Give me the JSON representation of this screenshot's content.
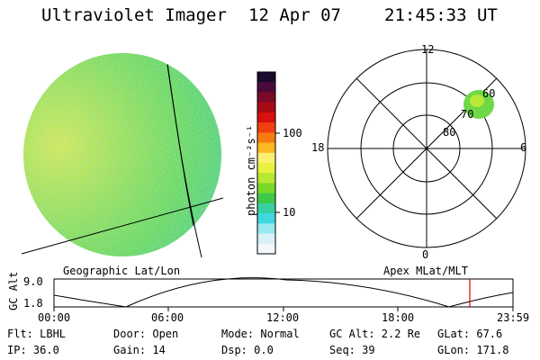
{
  "header": {
    "instrument": "Ultraviolet Imager",
    "date": "12 Apr 07",
    "time": "21:45:33 UT"
  },
  "colorbar": {
    "unit_label": "photon cm⁻²s⁻¹",
    "ticks": [
      "100",
      "10"
    ],
    "colors": [
      "#1a0a2e",
      "#4b0a3c",
      "#7a0a28",
      "#a80a14",
      "#d81010",
      "#f04010",
      "#f87a10",
      "#fcb820",
      "#fcf070",
      "#e8f040",
      "#b8e830",
      "#78d828",
      "#40c848",
      "#38d0a0",
      "#40d8e0",
      "#98e8f0",
      "#d8f0f8",
      "#f4f8fc"
    ]
  },
  "geo_panel": {
    "caption": "Geographic Lat/Lon"
  },
  "polar_panel": {
    "caption": "Apex MLat/MLT",
    "mlt_labels": {
      "top": "12",
      "bottom": "0",
      "left": "18",
      "right": "6"
    },
    "lat_labels": [
      "60",
      "70",
      "80"
    ]
  },
  "altitude_plot": {
    "ylabel": "GC Alt",
    "yticks": [
      "9.0",
      "1.8"
    ],
    "xticks": [
      "00:00",
      "06:00",
      "12:00",
      "18:00",
      "23:59"
    ],
    "marker_color": "#e00000"
  },
  "info": {
    "filter": "Flt: LBHL",
    "ip": "IP: 36.0",
    "door": "Door: Open",
    "gain": "Gain: 14",
    "mode": "Mode: Normal",
    "dsp": "Dsp:    0.0",
    "gc_alt": "GC Alt: 2.2 Re",
    "seq": "Seq: 39",
    "glat": "GLat:  67.6",
    "glon": "GLon: 171.8"
  }
}
